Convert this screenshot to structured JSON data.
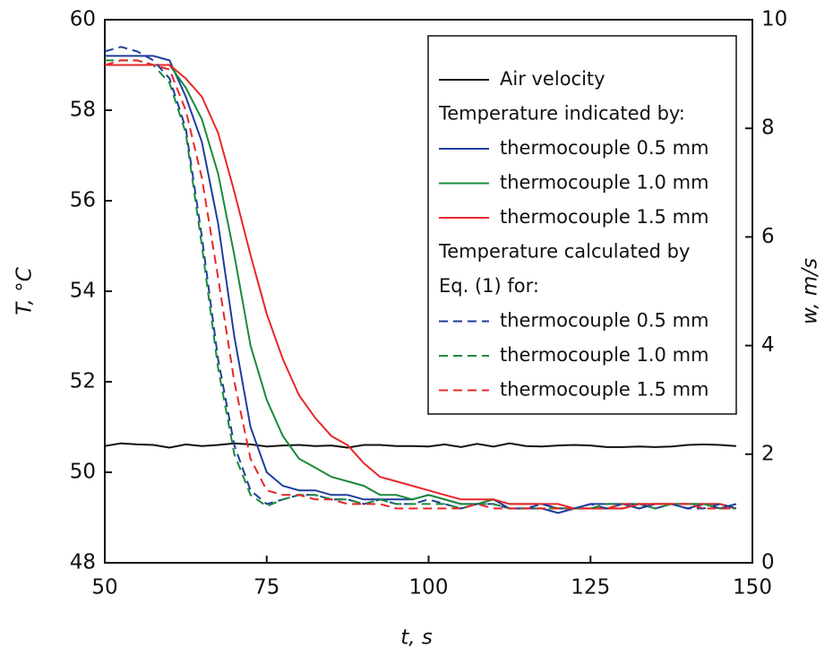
{
  "chart_data": {
    "type": "line",
    "xlabel": "t, s",
    "ylabel": "T, °C",
    "y2label": "w, m/s",
    "x": [
      50,
      52.5,
      55,
      57.5,
      60,
      62.5,
      65,
      67.5,
      70,
      72.5,
      75,
      77.5,
      80,
      82.5,
      85,
      87.5,
      90,
      92.5,
      95,
      97.5,
      100,
      102.5,
      105,
      107.5,
      110,
      112.5,
      115,
      117.5,
      120,
      122.5,
      125,
      127.5,
      130,
      132.5,
      135,
      137.5,
      140,
      142.5,
      145,
      147.5
    ],
    "xlim": [
      50,
      150
    ],
    "xticks": [
      50,
      75,
      100,
      125,
      150
    ],
    "ylim": [
      48,
      60
    ],
    "yticks": [
      48,
      50,
      52,
      54,
      56,
      58,
      60
    ],
    "y2lim": [
      0,
      10
    ],
    "y2ticks": [
      0,
      2,
      4,
      6,
      8,
      10
    ],
    "legend_notes": [
      "Temperature indicated by:",
      "Temperature calculated by",
      "Eq. (1) for:"
    ],
    "legend_position": "upper right",
    "series": [
      {
        "name": "Air velocity",
        "color": "#111111",
        "linestyle": "solid",
        "axis": "y2",
        "values": [
          2.15,
          2.2,
          2.18,
          2.17,
          2.12,
          2.18,
          2.15,
          2.17,
          2.2,
          2.18,
          2.14,
          2.16,
          2.17,
          2.15,
          2.16,
          2.12,
          2.17,
          2.17,
          2.15,
          2.15,
          2.14,
          2.18,
          2.13,
          2.19,
          2.14,
          2.2,
          2.15,
          2.14,
          2.16,
          2.17,
          2.16,
          2.13,
          2.13,
          2.14,
          2.13,
          2.14,
          2.17,
          2.18,
          2.17,
          2.15
        ]
      },
      {
        "name": "thermocouple 0.5 mm",
        "color": "#1f3e9b",
        "linestyle": "solid",
        "values": [
          59.2,
          59.2,
          59.2,
          59.2,
          59.1,
          58.3,
          57.3,
          55.5,
          53.0,
          51.0,
          50.0,
          49.7,
          49.6,
          49.6,
          49.5,
          49.5,
          49.4,
          49.4,
          49.4,
          49.4,
          49.5,
          49.4,
          49.3,
          49.3,
          49.4,
          49.2,
          49.2,
          49.2,
          49.1,
          49.2,
          49.3,
          49.3,
          49.3,
          49.2,
          49.3,
          49.3,
          49.2,
          49.3,
          49.2,
          49.3
        ]
      },
      {
        "name": "thermocouple 1.0 mm",
        "color": "#1a8a3a",
        "linestyle": "solid",
        "values": [
          59.0,
          59.0,
          59.0,
          59.0,
          59.0,
          58.5,
          57.8,
          56.6,
          54.8,
          52.8,
          51.6,
          50.8,
          50.3,
          50.1,
          49.9,
          49.8,
          49.7,
          49.5,
          49.5,
          49.4,
          49.5,
          49.4,
          49.3,
          49.3,
          49.4,
          49.3,
          49.3,
          49.3,
          49.2,
          49.2,
          49.2,
          49.2,
          49.2,
          49.3,
          49.3,
          49.3,
          49.3,
          49.3,
          49.3,
          49.2
        ]
      },
      {
        "name": "thermocouple 1.5 mm",
        "color": "#e8262a",
        "linestyle": "solid",
        "values": [
          59.0,
          59.0,
          59.0,
          59.0,
          59.0,
          58.7,
          58.3,
          57.5,
          56.2,
          54.8,
          53.5,
          52.5,
          51.7,
          51.2,
          50.8,
          50.6,
          50.2,
          49.9,
          49.8,
          49.7,
          49.6,
          49.5,
          49.4,
          49.4,
          49.4,
          49.3,
          49.3,
          49.3,
          49.3,
          49.2,
          49.2,
          49.2,
          49.2,
          49.3,
          49.3,
          49.3,
          49.3,
          49.3,
          49.3,
          49.2
        ]
      },
      {
        "name": "thermocouple 0.5 mm",
        "color": "#1f3e9b",
        "linestyle": "dashed",
        "values": [
          59.3,
          59.4,
          59.3,
          59.1,
          58.7,
          57.6,
          55.2,
          52.5,
          50.6,
          49.6,
          49.3,
          49.4,
          49.5,
          49.5,
          49.4,
          49.4,
          49.3,
          49.4,
          49.3,
          49.3,
          49.4,
          49.3,
          49.2,
          49.3,
          49.3,
          49.2,
          49.2,
          49.3,
          49.2,
          49.2,
          49.3,
          49.2,
          49.3,
          49.3,
          49.2,
          49.3,
          49.2,
          49.2,
          49.3,
          49.2
        ]
      },
      {
        "name": "thermocouple 1.0 mm",
        "color": "#1a8a3a",
        "linestyle": "dashed",
        "values": [
          59.1,
          59.1,
          59.1,
          59.0,
          58.6,
          57.5,
          55.0,
          52.3,
          50.4,
          49.5,
          49.25,
          49.4,
          49.5,
          49.5,
          49.4,
          49.4,
          49.3,
          49.4,
          49.3,
          49.3,
          49.3,
          49.3,
          49.2,
          49.3,
          49.3,
          49.2,
          49.2,
          49.2,
          49.2,
          49.2,
          49.2,
          49.3,
          49.3,
          49.3,
          49.2,
          49.3,
          49.3,
          49.3,
          49.2,
          49.2
        ]
      },
      {
        "name": "thermocouple 1.5 mm",
        "color": "#e8262a",
        "linestyle": "dashed",
        "values": [
          59.0,
          59.1,
          59.1,
          59.0,
          58.9,
          58.0,
          56.5,
          54.3,
          52.0,
          50.3,
          49.6,
          49.5,
          49.5,
          49.4,
          49.4,
          49.3,
          49.3,
          49.3,
          49.2,
          49.2,
          49.2,
          49.2,
          49.2,
          49.3,
          49.2,
          49.2,
          49.2,
          49.2,
          49.2,
          49.2,
          49.2,
          49.2,
          49.3,
          49.3,
          49.3,
          49.3,
          49.3,
          49.2,
          49.2,
          49.2
        ]
      }
    ]
  }
}
